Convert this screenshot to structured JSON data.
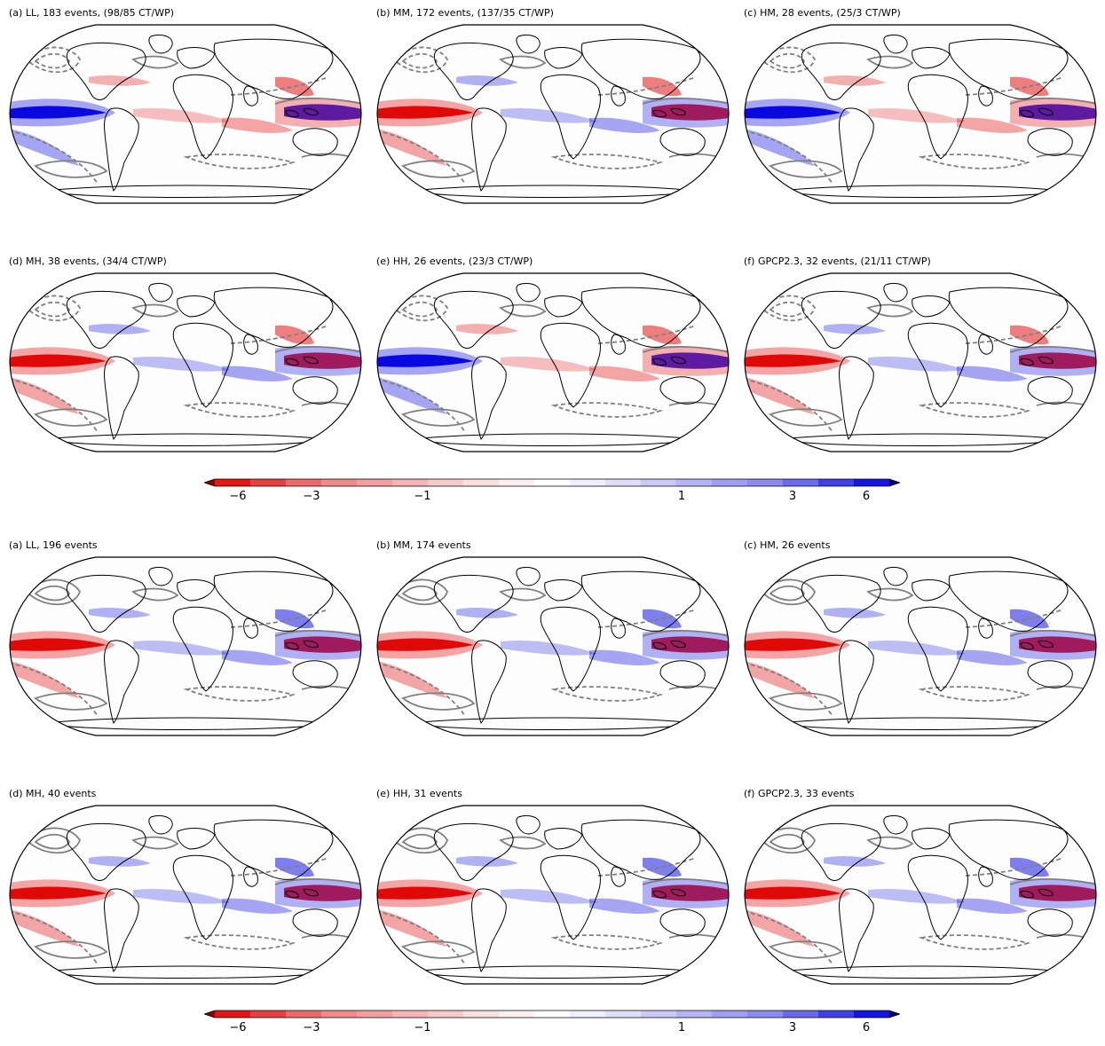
{
  "figure_top": {
    "panels": [
      {
        "title": "(a) LL, 183 events, (98/85 CT/WP)"
      },
      {
        "title": "(b) MM, 172 events, (137/35 CT/WP)"
      },
      {
        "title": "(c) HM, 28 events, (25/3 CT/WP)"
      },
      {
        "title": "(d) MH, 38 events, (34/4 CT/WP)"
      },
      {
        "title": "(e) HH, 26 events, (23/3 CT/WP)"
      },
      {
        "title": "(f) GPCP2.3, 32 events, (21/11 CT/WP)"
      }
    ],
    "colorbar_ticks": [
      "−6",
      "−3",
      "−1",
      "1",
      "3",
      "6"
    ]
  },
  "figure_bottom": {
    "panels": [
      {
        "title": "(a) LL, 196 events"
      },
      {
        "title": "(b) MM, 174 events"
      },
      {
        "title": "(c) HM, 26 events"
      },
      {
        "title": "(d) MH, 40 events"
      },
      {
        "title": "(e) HH, 31 events"
      },
      {
        "title": "(f) GPCP2.3, 33 events"
      }
    ],
    "colorbar_ticks": [
      "−6",
      "−3",
      "−1",
      "1",
      "3",
      "6"
    ]
  },
  "colormap": {
    "negative": "#e00000",
    "positive": "#0000e0",
    "levels": [
      -6,
      -5,
      -4,
      -3,
      -2.5,
      -2,
      -1.5,
      -1,
      -0.5,
      -0.25,
      0.25,
      0.5,
      1,
      1.5,
      2,
      2.5,
      3,
      4,
      5,
      6
    ]
  }
}
